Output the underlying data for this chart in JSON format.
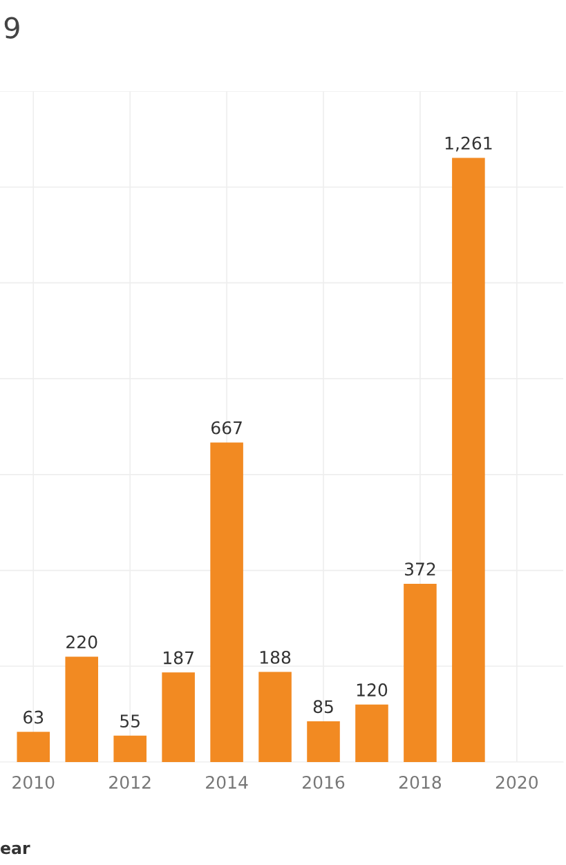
{
  "chart_data": {
    "type": "bar",
    "title": "9",
    "xlabel": "ear",
    "x": [
      2010,
      2011,
      2012,
      2013,
      2014,
      2015,
      2016,
      2017,
      2018,
      2019
    ],
    "values": [
      63,
      220,
      55,
      187,
      667,
      188,
      85,
      120,
      372,
      1261
    ],
    "value_labels": [
      "63",
      "220",
      "55",
      "187",
      "667",
      "188",
      "85",
      "120",
      "372",
      "1,261"
    ],
    "color": "#f28a22",
    "xlim": [
      2009.31,
      2020.96
    ],
    "xticks": [
      2010,
      2012,
      2014,
      2016,
      2018,
      2020
    ],
    "ylim": [
      0,
      1400
    ],
    "yticks": [
      0,
      200,
      400,
      600,
      800,
      1000,
      1200,
      1400
    ],
    "tick_labels": "x",
    "grid": true
  }
}
